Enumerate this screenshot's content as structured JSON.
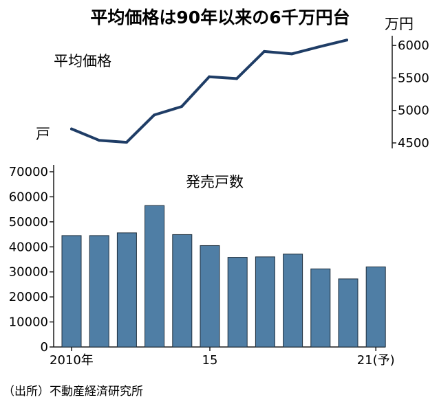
{
  "title": "平均価格は90年以来の6千万円台",
  "source": "（出所）不動産経済研究所",
  "colors": {
    "line": "#1f3d66",
    "bar": "#4f7ea5",
    "bar_edge": "#1f2f3d",
    "text": "#1a1a1a"
  },
  "chart_data": [
    {
      "type": "line",
      "label": "平均価格",
      "label_suffix": "戸",
      "ylabel": "万円",
      "x": [
        "2010",
        "2011",
        "2012",
        "2013",
        "2014",
        "2015",
        "2016",
        "2017",
        "2018",
        "2019",
        "2020"
      ],
      "values": [
        4716,
        4540,
        4510,
        4929,
        5060,
        5518,
        5490,
        5908,
        5871,
        5980,
        6083
      ],
      "ylim": [
        4500,
        6150
      ],
      "yticks": [
        "4500",
        "5000",
        "5500",
        "6000"
      ],
      "ytick_values": [
        4500,
        5000,
        5500,
        6000
      ],
      "axis_side": "right",
      "grid": false
    },
    {
      "type": "bar",
      "label": "発売戸数",
      "categories": [
        "2010",
        "2011",
        "2012",
        "2013",
        "2014",
        "2015",
        "2016",
        "2017",
        "2018",
        "2019",
        "2020",
        "2021"
      ],
      "values": [
        44500,
        44500,
        45600,
        56500,
        44900,
        40500,
        35800,
        36000,
        37100,
        31200,
        27200,
        32000
      ],
      "ylim": [
        0,
        70000
      ],
      "yticks": [
        "0",
        "10000",
        "20000",
        "30000",
        "40000",
        "50000",
        "60000",
        "70000"
      ],
      "ytick_values": [
        0,
        10000,
        20000,
        30000,
        40000,
        50000,
        60000,
        70000
      ],
      "xtick_labels": [
        "2010年",
        "15",
        "21(予)"
      ],
      "xtick_positions": [
        0,
        5,
        11
      ],
      "axis_side": "left",
      "grid": false
    }
  ]
}
